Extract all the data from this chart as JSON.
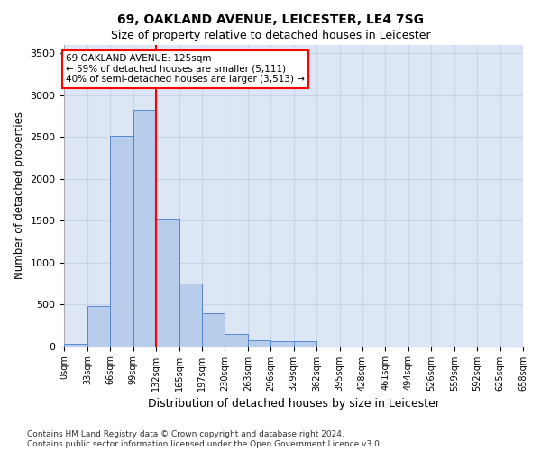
{
  "title": "69, OAKLAND AVENUE, LEICESTER, LE4 7SG",
  "subtitle": "Size of property relative to detached houses in Leicester",
  "xlabel": "Distribution of detached houses by size in Leicester",
  "ylabel": "Number of detached properties",
  "bin_labels": [
    "0sqm",
    "33sqm",
    "66sqm",
    "99sqm",
    "132sqm",
    "165sqm",
    "197sqm",
    "230sqm",
    "263sqm",
    "296sqm",
    "329sqm",
    "362sqm",
    "395sqm",
    "428sqm",
    "461sqm",
    "494sqm",
    "526sqm",
    "559sqm",
    "592sqm",
    "625sqm",
    "658sqm"
  ],
  "bar_values": [
    25,
    480,
    2510,
    2820,
    1520,
    750,
    390,
    145,
    75,
    55,
    55,
    0,
    0,
    0,
    0,
    0,
    0,
    0,
    0,
    0
  ],
  "bar_color": "#b8ccec",
  "bar_edge_color": "#5588cc",
  "grid_color": "#c8d4e8",
  "bg_color": "#dce6f5",
  "vline_x_bin": 4,
  "bin_width": 33,
  "num_bins": 20,
  "annotation_text": "69 OAKLAND AVENUE: 125sqm\n← 59% of detached houses are smaller (5,111)\n40% of semi-detached houses are larger (3,513) →",
  "annotation_box_color": "white",
  "annotation_edge_color": "red",
  "footer_line1": "Contains HM Land Registry data © Crown copyright and database right 2024.",
  "footer_line2": "Contains public sector information licensed under the Open Government Licence v3.0.",
  "ylim": [
    0,
    3600
  ],
  "yticks": [
    0,
    500,
    1000,
    1500,
    2000,
    2500,
    3000,
    3500
  ]
}
